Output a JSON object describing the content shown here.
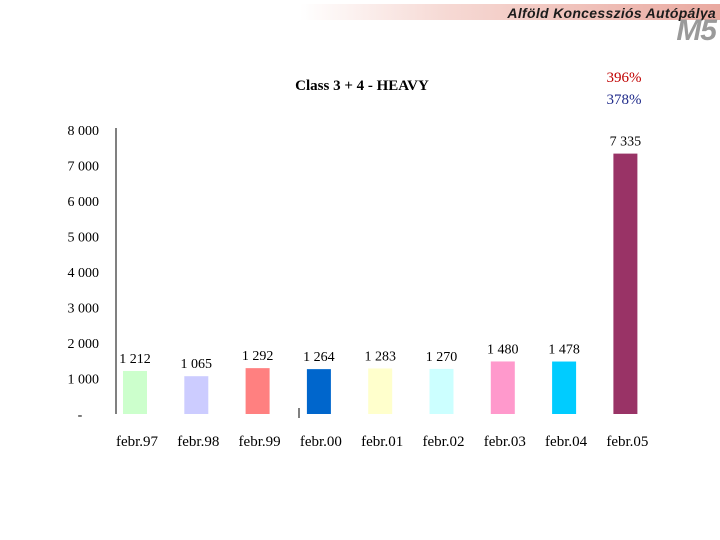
{
  "header": {
    "company": "Alföld Koncessziós Autópálya",
    "logo": "M5"
  },
  "growth": {
    "red_percent": "396%",
    "blue_percent": "378%",
    "red_color": "#c00000",
    "blue_color": "#1f2a8a"
  },
  "chart_data": {
    "type": "bar",
    "title": "Class 3 + 4 - HEAVY",
    "categories": [
      "febr.97",
      "febr.98",
      "febr.99",
      "febr.00",
      "febr.01",
      "febr.02",
      "febr.03",
      "febr.04",
      "febr.05"
    ],
    "values": [
      1212,
      1065,
      1292,
      1264,
      1283,
      1270,
      1480,
      1478,
      7335
    ],
    "value_labels": [
      "1 212",
      "1 065",
      "1 292",
      "1 264",
      "1 283",
      "1 270",
      "1 480",
      "1 478",
      "7 335"
    ],
    "colors": [
      "#ccffcc",
      "#ccccff",
      "#ff8080",
      "#0066cc",
      "#ffffcc",
      "#ccffff",
      "#ff99cc",
      "#00ccff",
      "#993366"
    ],
    "y_ticks": [
      0,
      1000,
      2000,
      3000,
      4000,
      5000,
      6000,
      7000,
      8000
    ],
    "y_tick_labels": [
      "-",
      "1 000",
      "2 000",
      "3 000",
      "4 000",
      "5 000",
      "6 000",
      "7 000",
      "8 000"
    ],
    "ylim": [
      0,
      8000
    ],
    "xlabel": "",
    "ylabel": "",
    "grid": false,
    "legend": "none"
  }
}
